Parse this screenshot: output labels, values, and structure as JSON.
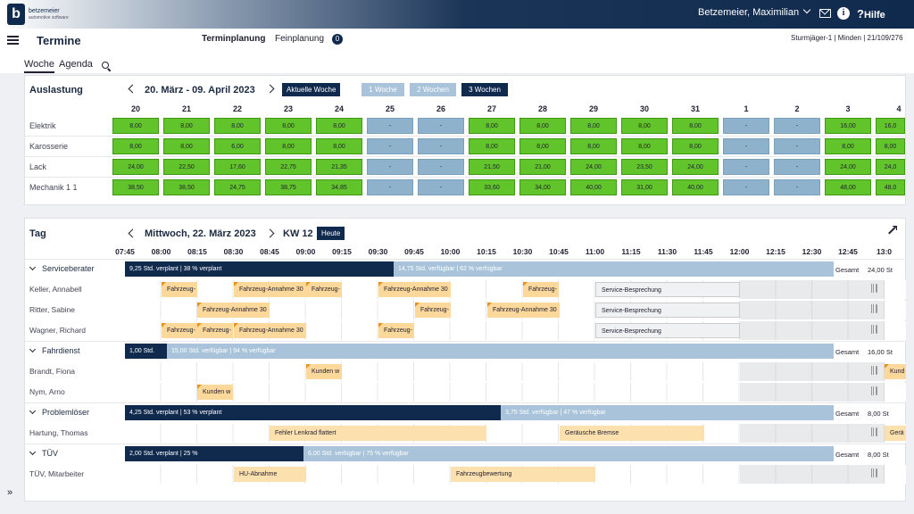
{
  "app": {
    "logo_letter": "b",
    "logo_line1": "betzemeier",
    "logo_line2": "automotive software",
    "user": "Betzemeier, Maximilian",
    "help": "Hilfe"
  },
  "header": {
    "title": "Termine",
    "tab_active": "Terminplanung",
    "tab_other": "Feinplanung",
    "badge": "0",
    "location": "Sturmjäger-1 | Minden | 21/109/276"
  },
  "subtabs": {
    "woche": "Woche",
    "agenda": "Agenda"
  },
  "auslastung": {
    "title": "Auslastung",
    "range": "20. März - 09. April 2023",
    "btn_current": "Aktuelle Woche",
    "btn_1": "1 Woche",
    "btn_2": "2 Wochen",
    "btn_3": "3 Wochen",
    "days": [
      "20",
      "21",
      "22",
      "23",
      "24",
      "25",
      "26",
      "27",
      "28",
      "29",
      "30",
      "31",
      "1",
      "2",
      "3",
      "4"
    ],
    "rows": [
      {
        "label": "Elektrik",
        "cells": [
          "8,00",
          "8,00",
          "8,00",
          "8,00",
          "8,00",
          "-",
          "-",
          "8,00",
          "8,00",
          "8,00",
          "8,00",
          "8,00",
          "-",
          "-",
          "16,00",
          "16,0"
        ]
      },
      {
        "label": "Karosserie",
        "cells": [
          "8,00",
          "8,00",
          "6,00",
          "8,00",
          "8,00",
          "-",
          "-",
          "8,00",
          "8,00",
          "8,00",
          "8,00",
          "8,00",
          "-",
          "-",
          "8,00",
          "8,00"
        ]
      },
      {
        "label": "Lack",
        "cells": [
          "24,00",
          "22,50",
          "17,60",
          "22,75",
          "21,35",
          "-",
          "-",
          "21,50",
          "21,00",
          "24,00",
          "23,50",
          "24,00",
          "-",
          "-",
          "24,00",
          "24,0"
        ]
      },
      {
        "label": "Mechanik 1 1",
        "cells": [
          "38,50",
          "38,50",
          "24,75",
          "38,75",
          "34,85",
          "-",
          "-",
          "33,60",
          "34,00",
          "40,00",
          "31,00",
          "40,00",
          "-",
          "-",
          "48,00",
          "48,0"
        ]
      }
    ]
  },
  "tag": {
    "title": "Tag",
    "date": "Mittwoch, 22. März 2023",
    "kw": "KW 12",
    "btn_today": "Heute",
    "times": [
      "07:45",
      "08:00",
      "08:15",
      "08:30",
      "08:45",
      "09:00",
      "09:15",
      "09:30",
      "09:45",
      "10:00",
      "10:15",
      "10:30",
      "10:45",
      "11:00",
      "11:15",
      "11:30",
      "11:45",
      "12:00",
      "12:15",
      "12:30",
      "12:45",
      "13:0"
    ],
    "groups": [
      {
        "name": "Serviceberater",
        "planned": "9,25 Std. verplant | 38 % verplant",
        "free": "14,75 Std. verfügbar | 62 % verfügbar",
        "gesamt": "Gesamt",
        "total": "24,00 St",
        "people": [
          {
            "name": "Keller, Annabell",
            "events": [
              "Fahrzeug-",
              "Fahrzeug-Annahme 30",
              "Fahrzeug-",
              "Fahrzeug-Annahme 30",
              "Fahrzeug-",
              "Service-Besprechung"
            ]
          },
          {
            "name": "Ritter, Sabine",
            "events": [
              "Fahrzeug-Annahme 30",
              "Fahrzeug-",
              "Fahrzeug-Annahme 30",
              "Service-Besprechung"
            ]
          },
          {
            "name": "Wagner, Richard",
            "events": [
              "Fahrzeug-",
              "Fahrzeug-",
              "Fahrzeug-Annahme 30",
              "Fahrzeug-",
              "Service-Besprechung"
            ]
          }
        ]
      },
      {
        "name": "Fahrdienst",
        "planned": "1,00 Std.",
        "free": "15,00 Std. verfügbar | 94 % verfügbar",
        "gesamt": "Gesamt",
        "total": "16,00 St",
        "people": [
          {
            "name": "Brandt, Fiona",
            "events": [
              "Kunden w",
              "Kund"
            ]
          },
          {
            "name": "Nym, Arno",
            "events": [
              "Kunden w"
            ]
          }
        ]
      },
      {
        "name": "Problemlöser",
        "planned": "4,25 Std. verplant | 53 % verplant",
        "free": "3,75 Std. verfügbar | 47 % verfügbar",
        "gesamt": "Gesamt",
        "total": "8,00 St",
        "people": [
          {
            "name": "Hartung, Thomas",
            "events": [
              "Fehler Lenkrad flattert",
              "Geräusche Bremse",
              "Gerä"
            ]
          }
        ]
      },
      {
        "name": "TÜV",
        "planned": "2,00 Std. verplant | 25 %",
        "free": "6,00 Std. verfügbar | 75 % verfügbar",
        "gesamt": "Gesamt",
        "total": "8,00 St",
        "people": [
          {
            "name": "TÜV, Mitarbeiter",
            "events": [
              "HU-Abnahme",
              "Fahrzeugbewertung"
            ]
          }
        ]
      }
    ]
  },
  "footer": {
    "expand": "»"
  }
}
